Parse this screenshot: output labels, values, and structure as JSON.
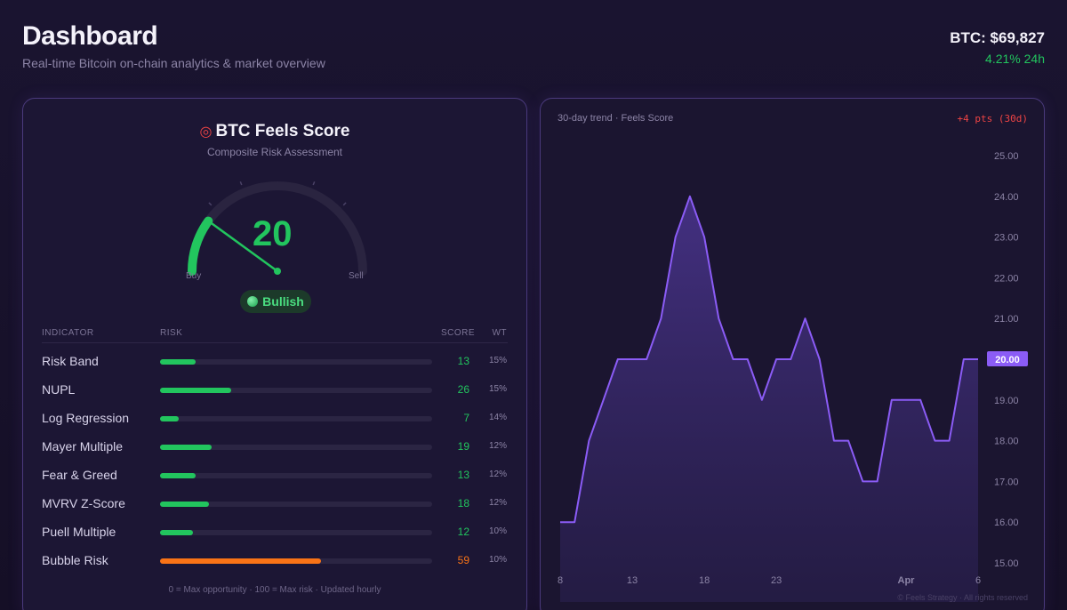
{
  "header": {
    "title": "Dashboard",
    "subtitle": "Real-time Bitcoin on-chain analytics & market overview",
    "btc_price": "BTC: $69,827",
    "btc_change": "4.21% 24h"
  },
  "score_card": {
    "title": "BTC Feels Score",
    "title_icon": "target-icon",
    "subtitle": "Composite Risk Assessment",
    "gauge_value": "20",
    "gauge_fraction": 0.2,
    "gauge_buy_label": "Buy",
    "gauge_sell_label": "Sell",
    "status_label": "Bullish",
    "colors": {
      "low_risk": "#22c55e",
      "high_risk": "#f97316",
      "accent": "#8b5cf6"
    },
    "table": {
      "headers": {
        "indicator": "INDICATOR",
        "risk": "RISK",
        "score": "SCORE",
        "wt": "WT"
      },
      "rows": [
        {
          "name": "Risk Band",
          "score": "13",
          "wt": "15%",
          "risk": 13
        },
        {
          "name": "NUPL",
          "score": "26",
          "wt": "15%",
          "risk": 26
        },
        {
          "name": "Log Regression",
          "score": "7",
          "wt": "14%",
          "risk": 7
        },
        {
          "name": "Mayer Multiple",
          "score": "19",
          "wt": "12%",
          "risk": 19
        },
        {
          "name": "Fear & Greed",
          "score": "13",
          "wt": "12%",
          "risk": 13
        },
        {
          "name": "MVRV Z-Score",
          "score": "18",
          "wt": "12%",
          "risk": 18
        },
        {
          "name": "Puell Multiple",
          "score": "12",
          "wt": "10%",
          "risk": 12
        },
        {
          "name": "Bubble Risk",
          "score": "59",
          "wt": "10%",
          "risk": 59
        }
      ]
    },
    "footnote": "0 = Max opportunity · 100 = Max risk · Updated hourly"
  },
  "trend_card": {
    "label": "30-day trend · Feels Score",
    "delta": "+4 pts (30d)",
    "copyright": "© Feels Strategy · All rights reserved"
  },
  "chart_data": {
    "type": "area",
    "title": "",
    "xlabel": "",
    "ylabel": "",
    "x_ticks": [
      "8",
      "13",
      "18",
      "23",
      "Apr",
      "6"
    ],
    "y_ticks": [
      "15.00",
      "16.00",
      "17.00",
      "18.00",
      "19.00",
      "20.00",
      "21.00",
      "22.00",
      "23.00",
      "24.00",
      "25.00"
    ],
    "ylim": [
      15,
      25
    ],
    "current_value_label": "20.00",
    "series": [
      {
        "values": [
          16,
          16,
          18,
          19,
          20,
          20,
          20,
          21,
          23,
          24,
          23,
          21,
          20,
          20,
          19,
          20,
          20,
          21,
          20,
          18,
          18,
          17,
          17,
          19,
          19,
          19,
          18,
          18,
          20,
          20
        ]
      }
    ],
    "line_color": "#8b5cf6",
    "fill_color": "#3a2a6a",
    "grid": false
  }
}
